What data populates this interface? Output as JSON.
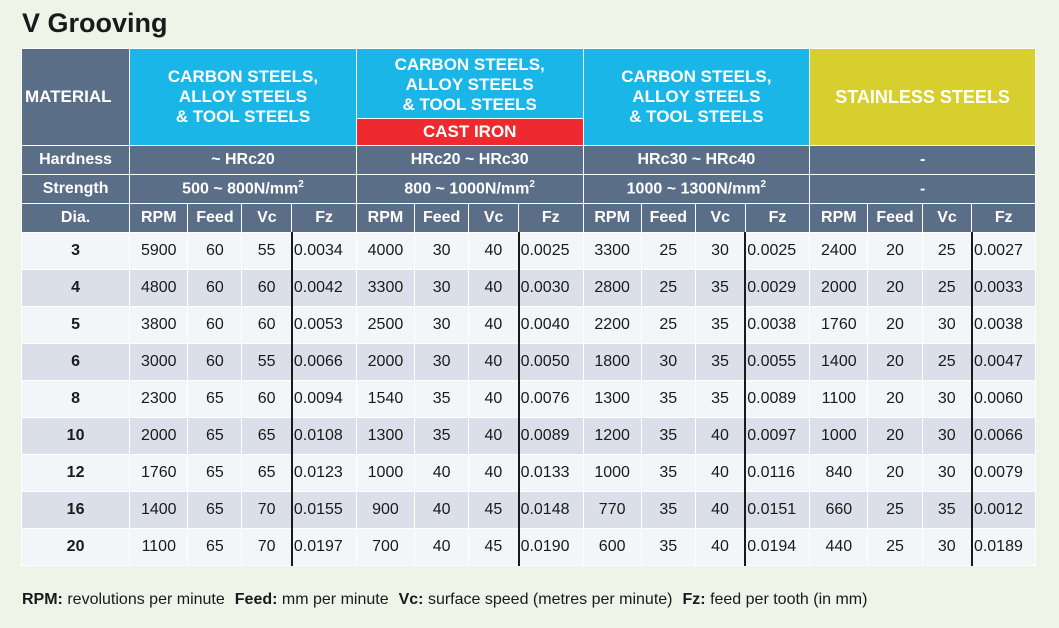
{
  "title": "V Grooving",
  "header": {
    "material_label": "MATERIAL",
    "groups": [
      {
        "lines": [
          "CARBON STEELS,",
          "ALLOY STEELS",
          "& TOOL STEELS"
        ],
        "sub": ""
      },
      {
        "lines": [
          "CARBON STEELS,",
          "ALLOY STEELS",
          "& TOOL STEELS"
        ],
        "sub": "CAST IRON"
      },
      {
        "lines": [
          "CARBON STEELS,",
          "ALLOY STEELS",
          "& TOOL STEELS"
        ],
        "sub": ""
      },
      {
        "lines": [
          "STAINLESS STEELS"
        ],
        "sub": ""
      }
    ],
    "hardness_label": "Hardness",
    "hardness": [
      "~ HRc20",
      "HRc20 ~ HRc30",
      "HRc30 ~ HRc40",
      "-"
    ],
    "strength_label": "Strength",
    "strength": [
      {
        "text": "500 ~ 800N/mm",
        "sup": "2"
      },
      {
        "text": "800 ~ 1000N/mm",
        "sup": "2"
      },
      {
        "text": "1000 ~ 1300N/mm",
        "sup": "2"
      },
      {
        "text": "-",
        "sup": ""
      }
    ],
    "dia_label": "Dia.",
    "sub_columns": [
      "RPM",
      "Feed",
      "Vc",
      "Fz"
    ]
  },
  "colors": {
    "header_slate": "#5b6e88",
    "cyan": "#1ab6e8",
    "cast_iron_red": "#ee2a30",
    "stainless_yellow": "#d6cf2e",
    "row_light": "#f4f5f8",
    "row_dark": "#dbdfea",
    "background": "#eef4e8"
  },
  "rows": [
    {
      "dia": "3",
      "vals": [
        [
          "5900",
          "60",
          "55",
          "0.0034"
        ],
        [
          "4000",
          "30",
          "40",
          "0.0025"
        ],
        [
          "3300",
          "25",
          "30",
          "0.0025"
        ],
        [
          "2400",
          "20",
          "25",
          "0.0027"
        ]
      ]
    },
    {
      "dia": "4",
      "vals": [
        [
          "4800",
          "60",
          "60",
          "0.0042"
        ],
        [
          "3300",
          "30",
          "40",
          "0.0030"
        ],
        [
          "2800",
          "25",
          "35",
          "0.0029"
        ],
        [
          "2000",
          "20",
          "25",
          "0.0033"
        ]
      ]
    },
    {
      "dia": "5",
      "vals": [
        [
          "3800",
          "60",
          "60",
          "0.0053"
        ],
        [
          "2500",
          "30",
          "40",
          "0.0040"
        ],
        [
          "2200",
          "25",
          "35",
          "0.0038"
        ],
        [
          "1760",
          "20",
          "30",
          "0.0038"
        ]
      ]
    },
    {
      "dia": "6",
      "vals": [
        [
          "3000",
          "60",
          "55",
          "0.0066"
        ],
        [
          "2000",
          "30",
          "40",
          "0.0050"
        ],
        [
          "1800",
          "30",
          "35",
          "0.0055"
        ],
        [
          "1400",
          "20",
          "25",
          "0.0047"
        ]
      ]
    },
    {
      "dia": "8",
      "vals": [
        [
          "2300",
          "65",
          "60",
          "0.0094"
        ],
        [
          "1540",
          "35",
          "40",
          "0.0076"
        ],
        [
          "1300",
          "35",
          "35",
          "0.0089"
        ],
        [
          "1100",
          "20",
          "30",
          "0.0060"
        ]
      ]
    },
    {
      "dia": "10",
      "vals": [
        [
          "2000",
          "65",
          "65",
          "0.0108"
        ],
        [
          "1300",
          "35",
          "40",
          "0.0089"
        ],
        [
          "1200",
          "35",
          "40",
          "0.0097"
        ],
        [
          "1000",
          "20",
          "30",
          "0.0066"
        ]
      ]
    },
    {
      "dia": "12",
      "vals": [
        [
          "1760",
          "65",
          "65",
          "0.0123"
        ],
        [
          "1000",
          "40",
          "40",
          "0.0133"
        ],
        [
          "1000",
          "35",
          "40",
          "0.0116"
        ],
        [
          "840",
          "20",
          "30",
          "0.0079"
        ]
      ]
    },
    {
      "dia": "16",
      "vals": [
        [
          "1400",
          "65",
          "70",
          "0.0155"
        ],
        [
          "900",
          "40",
          "45",
          "0.0148"
        ],
        [
          "770",
          "35",
          "40",
          "0.0151"
        ],
        [
          "660",
          "25",
          "35",
          "0.0012"
        ]
      ]
    },
    {
      "dia": "20",
      "vals": [
        [
          "1100",
          "65",
          "70",
          "0.0197"
        ],
        [
          "700",
          "40",
          "45",
          "0.0190"
        ],
        [
          "600",
          "35",
          "40",
          "0.0194"
        ],
        [
          "440",
          "25",
          "30",
          "0.0189"
        ]
      ]
    }
  ],
  "legend": [
    {
      "term": "RPM:",
      "desc": "revolutions per minute"
    },
    {
      "term": "Feed:",
      "desc": "mm per minute"
    },
    {
      "term": "Vc:",
      "desc": "surface speed (metres per minute)"
    },
    {
      "term": "Fz:",
      "desc": "feed per tooth (in mm)"
    }
  ]
}
